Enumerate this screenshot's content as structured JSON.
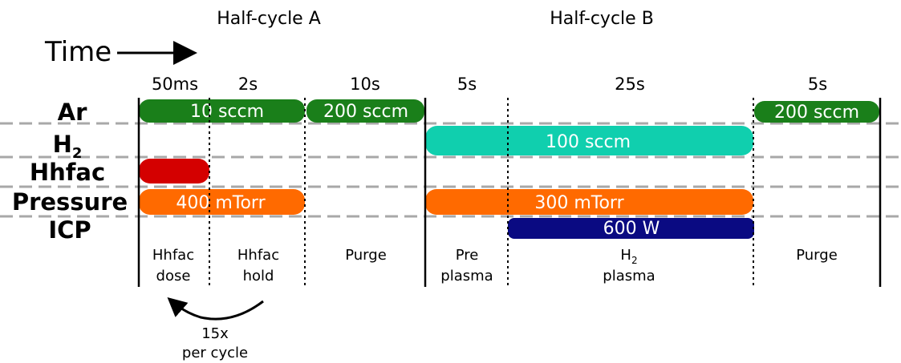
{
  "half_cycles": {
    "a": "Half-cycle A",
    "b": "Half-cycle B"
  },
  "time_label": "Time",
  "durations": [
    "50ms",
    "2s",
    "10s",
    "5s",
    "25s",
    "5s"
  ],
  "rows": {
    "ar": "Ar",
    "h2": "H",
    "h2_sub": "2",
    "hhfac": "Hhfac",
    "pressure": "Pressure",
    "icp": "ICP"
  },
  "bars": {
    "ar_dose_hold": "10 sccm",
    "ar_purge_a": "200 sccm",
    "ar_purge_b": "200 sccm",
    "h2_flow": "100 sccm",
    "pressure_a": "400 mTorr",
    "pressure_b": "300 mTorr",
    "icp_power": "600 W"
  },
  "steps": {
    "dose_1": "Hhfac",
    "dose_2": "dose",
    "hold_1": "Hhfac",
    "hold_2": "hold",
    "purge_a": "Purge",
    "pre_1": "Pre",
    "pre_2": "plasma",
    "h2p_1": "H",
    "h2p_sub": "2",
    "h2p_2": "plasma",
    "purge_b": "Purge"
  },
  "loop": {
    "count": "15x",
    "text": "per cycle"
  },
  "colors": {
    "ar": "#1a7f1a",
    "h2": "#10cfae",
    "hhfac": "#d40000",
    "pressure": "#ff6a00",
    "icp": "#0a0a82",
    "divider": "#a8a8a8"
  }
}
